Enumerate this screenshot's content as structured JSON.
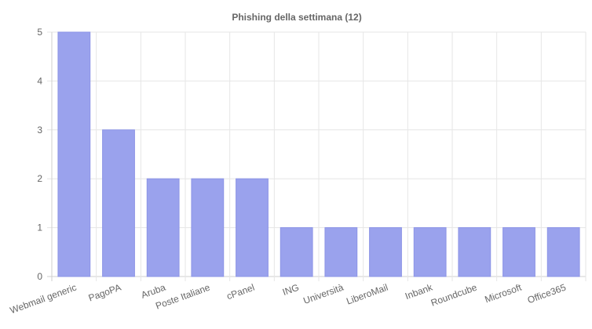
{
  "chart_data": {
    "type": "bar",
    "title": "Phishing della settimana (12)",
    "xlabel": "",
    "ylabel": "",
    "categories": [
      "Webmail generic",
      "PagoPA",
      "Aruba",
      "Poste Italiane",
      "cPanel",
      "ING",
      "Università",
      "LiberoMail",
      "Inbank",
      "Roundcube",
      "Microsoft",
      "Office365"
    ],
    "values": [
      5,
      3,
      2,
      2,
      2,
      1,
      1,
      1,
      1,
      1,
      1,
      1
    ],
    "ylim": [
      0,
      5
    ],
    "yticks": [
      "0",
      "1",
      "2",
      "3",
      "4",
      "5"
    ],
    "grid": true,
    "legend": "none",
    "colors": {
      "bar_fill": "#9aa2ed",
      "bar_stroke": "#8c94e6",
      "grid": "#e6e6e6",
      "text": "#666666"
    }
  }
}
